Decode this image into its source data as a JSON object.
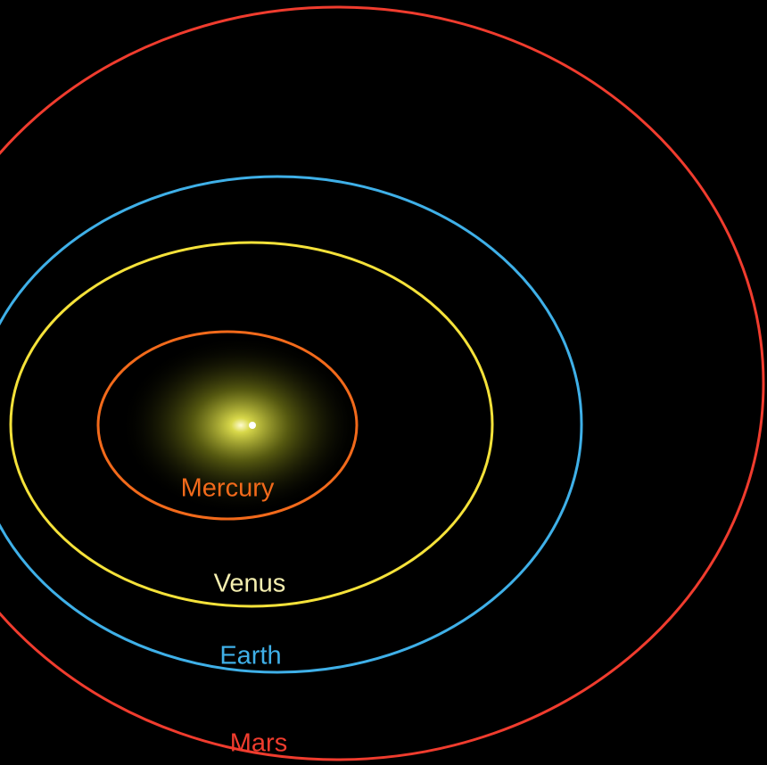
{
  "labels": {
    "mercury": "Mercury",
    "venus": "Venus",
    "earth": "Earth",
    "mars": "Mars"
  }
}
